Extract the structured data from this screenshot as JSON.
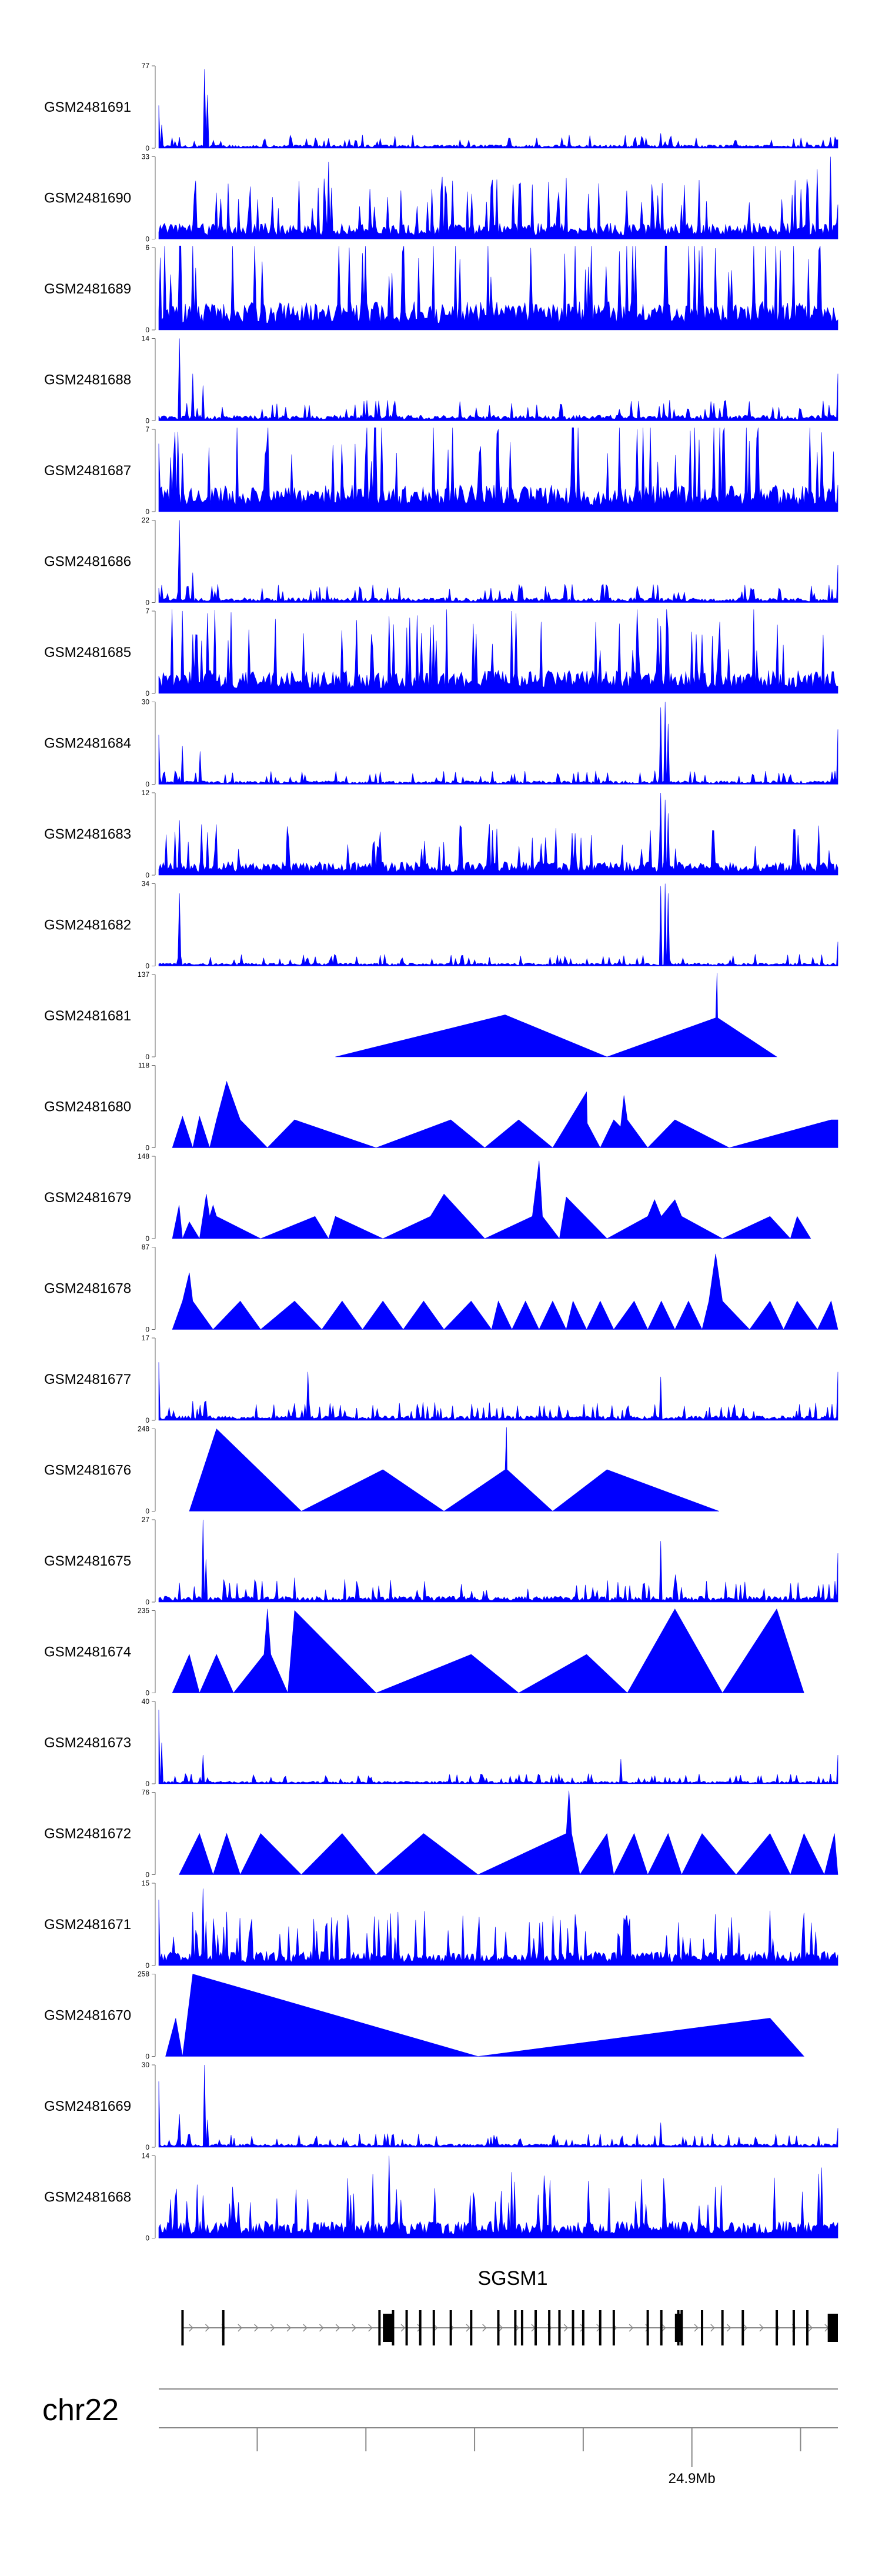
{
  "chart_data": {
    "type": "area",
    "title": "",
    "color": "#0000ff",
    "tracks": [
      {
        "name": "GSM2481691",
        "ymin": 0,
        "ymax": 77,
        "style": "dense",
        "peaks": [
          [
            0.0,
            40
          ],
          [
            0.005,
            22
          ],
          [
            0.068,
            74
          ],
          [
            0.072,
            50
          ],
          [
            0.74,
            14
          ],
          [
            1.0,
            8
          ]
        ],
        "noise": 5
      },
      {
        "name": "GSM2481690",
        "ymin": 0,
        "ymax": 33,
        "style": "dense",
        "peaks": [
          [
            0.25,
            31
          ],
          [
            0.97,
            28
          ],
          [
            0.99,
            33
          ]
        ],
        "noise": 10
      },
      {
        "name": "GSM2481689",
        "ymin": 0,
        "ymax": 6,
        "style": "dense",
        "peaks": [
          [
            0.28,
            6
          ],
          [
            0.3,
            5.6
          ]
        ],
        "noise": 3.2
      },
      {
        "name": "GSM2481688",
        "ymin": 0,
        "ymax": 14,
        "style": "dense",
        "peaks": [
          [
            0.03,
            14
          ],
          [
            0.05,
            8
          ],
          [
            0.065,
            6
          ],
          [
            1.0,
            8
          ]
        ],
        "noise": 1.5
      },
      {
        "name": "GSM2481687",
        "ymin": 0,
        "ymax": 7,
        "style": "dense",
        "peaks": [
          [
            0.5,
            7
          ],
          [
            0.35,
            5
          ]
        ],
        "noise": 3.5
      },
      {
        "name": "GSM2481686",
        "ymin": 0,
        "ymax": 22,
        "style": "dense",
        "peaks": [
          [
            0.03,
            22
          ],
          [
            0.05,
            8
          ],
          [
            1.0,
            10
          ]
        ],
        "noise": 2
      },
      {
        "name": "GSM2481685",
        "ymin": 0,
        "ymax": 7,
        "style": "dense",
        "peaks": [
          [
            0.52,
            7
          ],
          [
            0.055,
            5
          ],
          [
            0.75,
            5.5
          ]
        ],
        "noise": 3
      },
      {
        "name": "GSM2481684",
        "ymin": 0,
        "ymax": 30,
        "style": "dense",
        "peaks": [
          [
            0.0,
            18
          ],
          [
            0.035,
            14
          ],
          [
            0.06,
            12
          ],
          [
            0.74,
            28
          ],
          [
            0.745,
            30
          ],
          [
            0.75,
            22
          ],
          [
            1.0,
            20
          ]
        ],
        "noise": 2
      },
      {
        "name": "GSM2481683",
        "ymin": 0,
        "ymax": 12,
        "style": "dense",
        "peaks": [
          [
            0.03,
            8
          ],
          [
            0.74,
            12
          ],
          [
            0.745,
            11
          ],
          [
            0.75,
            9
          ]
        ],
        "noise": 3
      },
      {
        "name": "GSM2481682",
        "ymin": 0,
        "ymax": 34,
        "style": "dense",
        "peaks": [
          [
            0.03,
            30
          ],
          [
            0.74,
            33
          ],
          [
            0.745,
            34
          ],
          [
            0.75,
            30
          ],
          [
            1.0,
            10
          ]
        ],
        "noise": 2
      },
      {
        "name": "GSM2481681",
        "ymin": 0,
        "ymax": 137,
        "style": "triangles",
        "points": [
          [
            0.26,
            0
          ],
          [
            0.51,
            70
          ],
          [
            0.66,
            0
          ],
          [
            0.82,
            65
          ],
          [
            0.822,
            140
          ],
          [
            0.823,
            65
          ],
          [
            0.91,
            0
          ]
        ]
      },
      {
        "name": "GSM2481680",
        "ymin": 0,
        "ymax": 118,
        "style": "triangles",
        "points": [
          [
            0.02,
            0
          ],
          [
            0.035,
            45
          ],
          [
            0.05,
            0
          ],
          [
            0.06,
            45
          ],
          [
            0.075,
            0
          ],
          [
            0.085,
            40
          ],
          [
            0.1,
            95
          ],
          [
            0.12,
            40
          ],
          [
            0.16,
            0
          ],
          [
            0.2,
            40
          ],
          [
            0.32,
            0
          ],
          [
            0.43,
            40
          ],
          [
            0.48,
            0
          ],
          [
            0.53,
            40
          ],
          [
            0.58,
            0
          ],
          [
            0.63,
            80
          ],
          [
            0.631,
            35
          ],
          [
            0.65,
            0
          ],
          [
            0.67,
            40
          ],
          [
            0.68,
            30
          ],
          [
            0.685,
            75
          ],
          [
            0.69,
            40
          ],
          [
            0.72,
            0
          ],
          [
            0.76,
            40
          ],
          [
            0.84,
            0
          ],
          [
            0.99,
            40
          ],
          [
            1.0,
            40
          ]
        ]
      },
      {
        "name": "GSM2481679",
        "ymin": 0,
        "ymax": 148,
        "style": "triangles",
        "points": [
          [
            0.02,
            0
          ],
          [
            0.03,
            60
          ],
          [
            0.035,
            0
          ],
          [
            0.045,
            30
          ],
          [
            0.06,
            0
          ],
          [
            0.065,
            40
          ],
          [
            0.07,
            80
          ],
          [
            0.075,
            40
          ],
          [
            0.08,
            60
          ],
          [
            0.085,
            40
          ],
          [
            0.15,
            0
          ],
          [
            0.23,
            40
          ],
          [
            0.25,
            0
          ],
          [
            0.26,
            40
          ],
          [
            0.33,
            0
          ],
          [
            0.4,
            40
          ],
          [
            0.42,
            80
          ],
          [
            0.48,
            0
          ],
          [
            0.55,
            40
          ],
          [
            0.56,
            140
          ],
          [
            0.565,
            40
          ],
          [
            0.59,
            0
          ],
          [
            0.6,
            75
          ],
          [
            0.66,
            0
          ],
          [
            0.72,
            40
          ],
          [
            0.73,
            70
          ],
          [
            0.74,
            40
          ],
          [
            0.76,
            70
          ],
          [
            0.77,
            40
          ],
          [
            0.83,
            0
          ],
          [
            0.9,
            40
          ],
          [
            0.93,
            0
          ],
          [
            0.94,
            40
          ],
          [
            0.96,
            0
          ]
        ]
      },
      {
        "name": "GSM2481678",
        "ymin": 0,
        "ymax": 87,
        "style": "triangles",
        "points": [
          [
            0.02,
            0
          ],
          [
            0.035,
            30
          ],
          [
            0.045,
            60
          ],
          [
            0.05,
            30
          ],
          [
            0.08,
            0
          ],
          [
            0.12,
            30
          ],
          [
            0.15,
            0
          ],
          [
            0.2,
            30
          ],
          [
            0.24,
            0
          ],
          [
            0.27,
            30
          ],
          [
            0.3,
            0
          ],
          [
            0.33,
            30
          ],
          [
            0.36,
            0
          ],
          [
            0.39,
            30
          ],
          [
            0.42,
            0
          ],
          [
            0.46,
            30
          ],
          [
            0.49,
            0
          ],
          [
            0.5,
            30
          ],
          [
            0.52,
            0
          ],
          [
            0.54,
            30
          ],
          [
            0.56,
            0
          ],
          [
            0.58,
            30
          ],
          [
            0.6,
            0
          ],
          [
            0.61,
            30
          ],
          [
            0.63,
            0
          ],
          [
            0.65,
            30
          ],
          [
            0.67,
            0
          ],
          [
            0.7,
            30
          ],
          [
            0.72,
            0
          ],
          [
            0.74,
            30
          ],
          [
            0.76,
            0
          ],
          [
            0.78,
            30
          ],
          [
            0.8,
            0
          ],
          [
            0.81,
            30
          ],
          [
            0.82,
            80
          ],
          [
            0.83,
            30
          ],
          [
            0.87,
            0
          ],
          [
            0.9,
            30
          ],
          [
            0.92,
            0
          ],
          [
            0.94,
            30
          ],
          [
            0.97,
            0
          ],
          [
            0.99,
            30
          ],
          [
            1.0,
            0
          ]
        ]
      },
      {
        "name": "GSM2481677",
        "ymin": 0,
        "ymax": 17,
        "style": "dense",
        "peaks": [
          [
            0.0,
            12
          ],
          [
            0.05,
            4
          ],
          [
            0.07,
            4
          ],
          [
            0.22,
            10
          ],
          [
            0.74,
            9
          ],
          [
            1.0,
            10
          ]
        ],
        "noise": 1.5
      },
      {
        "name": "GSM2481676",
        "ymin": 0,
        "ymax": 248,
        "style": "triangles",
        "points": [
          [
            0.045,
            0
          ],
          [
            0.085,
            248
          ],
          [
            0.21,
            0
          ],
          [
            0.33,
            125
          ],
          [
            0.42,
            0
          ],
          [
            0.51,
            125
          ],
          [
            0.512,
            270
          ],
          [
            0.513,
            125
          ],
          [
            0.58,
            0
          ],
          [
            0.66,
            125
          ],
          [
            0.825,
            0
          ]
        ]
      },
      {
        "name": "GSM2481675",
        "ymin": 0,
        "ymax": 27,
        "style": "dense",
        "peaks": [
          [
            0.066,
            27
          ],
          [
            0.07,
            14
          ],
          [
            0.2,
            8
          ],
          [
            0.74,
            20
          ],
          [
            0.76,
            9
          ],
          [
            1.0,
            16
          ]
        ],
        "noise": 3
      },
      {
        "name": "GSM2481674",
        "ymin": 0,
        "ymax": 235,
        "style": "triangles",
        "points": [
          [
            0.02,
            0
          ],
          [
            0.045,
            110
          ],
          [
            0.06,
            0
          ],
          [
            0.085,
            110
          ],
          [
            0.11,
            0
          ],
          [
            0.155,
            110
          ],
          [
            0.16,
            240
          ],
          [
            0.165,
            110
          ],
          [
            0.19,
            0
          ],
          [
            0.2,
            235
          ],
          [
            0.32,
            0
          ],
          [
            0.46,
            110
          ],
          [
            0.53,
            0
          ],
          [
            0.63,
            110
          ],
          [
            0.69,
            0
          ],
          [
            0.76,
            240
          ],
          [
            0.83,
            0
          ],
          [
            0.91,
            240
          ],
          [
            0.95,
            0
          ]
        ]
      },
      {
        "name": "GSM2481673",
        "ymin": 0,
        "ymax": 40,
        "style": "dense",
        "peaks": [
          [
            0.0,
            36
          ],
          [
            0.005,
            20
          ],
          [
            0.065,
            14
          ],
          [
            0.68,
            12
          ],
          [
            1.0,
            14
          ]
        ],
        "noise": 2
      },
      {
        "name": "GSM2481672",
        "ymin": 0,
        "ymax": 76,
        "style": "triangles",
        "points": [
          [
            0.03,
            0
          ],
          [
            0.06,
            38
          ],
          [
            0.08,
            0
          ],
          [
            0.1,
            38
          ],
          [
            0.12,
            0
          ],
          [
            0.15,
            38
          ],
          [
            0.21,
            0
          ],
          [
            0.27,
            38
          ],
          [
            0.32,
            0
          ],
          [
            0.39,
            38
          ],
          [
            0.47,
            0
          ],
          [
            0.6,
            38
          ],
          [
            0.604,
            80
          ],
          [
            0.608,
            38
          ],
          [
            0.62,
            0
          ],
          [
            0.66,
            38
          ],
          [
            0.67,
            0
          ],
          [
            0.7,
            38
          ],
          [
            0.72,
            0
          ],
          [
            0.75,
            38
          ],
          [
            0.77,
            0
          ],
          [
            0.8,
            38
          ],
          [
            0.85,
            0
          ],
          [
            0.9,
            38
          ],
          [
            0.93,
            0
          ],
          [
            0.95,
            38
          ],
          [
            0.98,
            0
          ],
          [
            0.995,
            38
          ],
          [
            1.0,
            0
          ]
        ]
      },
      {
        "name": "GSM2481671",
        "ymin": 0,
        "ymax": 15,
        "style": "dense",
        "peaks": [
          [
            0.0,
            12
          ],
          [
            0.05,
            8
          ],
          [
            0.066,
            14
          ],
          [
            0.07,
            8
          ],
          [
            0.9,
            10
          ]
        ],
        "noise": 4
      },
      {
        "name": "GSM2481670",
        "ymin": 0,
        "ymax": 258,
        "style": "triangles",
        "points": [
          [
            0.01,
            0
          ],
          [
            0.025,
            120
          ],
          [
            0.035,
            0
          ],
          [
            0.05,
            258
          ],
          [
            0.47,
            0
          ],
          [
            0.9,
            120
          ],
          [
            0.95,
            0
          ]
        ]
      },
      {
        "name": "GSM2481669",
        "ymin": 0,
        "ymax": 30,
        "style": "dense",
        "peaks": [
          [
            0.0,
            24
          ],
          [
            0.03,
            12
          ],
          [
            0.067,
            30
          ],
          [
            0.072,
            10
          ],
          [
            0.74,
            9
          ],
          [
            1.0,
            7
          ]
        ],
        "noise": 2
      },
      {
        "name": "GSM2481668",
        "ymin": 0,
        "ymax": 14,
        "style": "dense",
        "peaks": [
          [
            0.34,
            14
          ],
          [
            0.975,
            12
          ]
        ],
        "noise": 4.5
      }
    ],
    "gene": {
      "name": "SGSM1",
      "exons": [
        0.035,
        0.095,
        0.325,
        0.345,
        0.365,
        0.385,
        0.405,
        0.43,
        0.46,
        0.5,
        0.525,
        0.535,
        0.555,
        0.575,
        0.59,
        0.61,
        0.625,
        0.65,
        0.67,
        0.72,
        0.74,
        0.765,
        0.77,
        0.8,
        0.83,
        0.86,
        0.91,
        0.935,
        0.955
      ],
      "thick_exons": [
        [
          0.33,
          0.345
        ],
        [
          0.76,
          0.77
        ],
        [
          0.985,
          1.0
        ]
      ]
    },
    "chromosome": "chr22",
    "axis": {
      "ticks": [
        0.145,
        0.305,
        0.465,
        0.625,
        0.785,
        0.945
      ],
      "labeled_tick": {
        "pos": 0.785,
        "label": "24.9Mb"
      }
    }
  }
}
